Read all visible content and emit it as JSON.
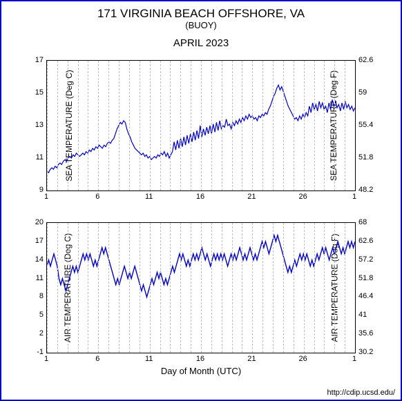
{
  "header": {
    "title": "171 VIRGINIA BEACH OFFSHORE, VA",
    "subtitle": "(BUOY)",
    "period": "APRIL 2023"
  },
  "xaxis": {
    "label": "Day of Month (UTC)",
    "ticks": [
      1,
      6,
      11,
      16,
      21,
      26,
      1
    ],
    "min": 1,
    "max": 31
  },
  "credit": "http://cdip.ucsd.edu/",
  "line_color": "#0000cc",
  "grid_color": "#bfbfbf",
  "background_color": "#ffffff",
  "chart1": {
    "type": "line",
    "ylabel_left": "SEA TEMPERATURE (Deg C)",
    "ylabel_right": "SEA TEMPERATURE (Deg F)",
    "ylim": [
      9,
      17
    ],
    "yticks_left": [
      9,
      11,
      13,
      15,
      17
    ],
    "yticks_right": [
      48.2,
      51.8,
      55.4,
      59,
      62.6
    ],
    "label_fontsize": 12,
    "tick_fontsize": 11,
    "line_width": 1.2,
    "series": [
      10.2,
      10.1,
      10.3,
      10.4,
      10.3,
      10.5,
      10.4,
      10.6,
      10.7,
      10.6,
      10.8,
      10.9,
      10.8,
      11.0,
      11.1,
      11.0,
      11.2,
      11.1,
      11.3,
      11.2,
      11.1,
      11.2,
      11.3,
      11.2,
      11.4,
      11.3,
      11.5,
      11.4,
      11.6,
      11.5,
      11.7,
      11.6,
      11.8,
      11.7,
      11.6,
      11.8,
      11.7,
      11.9,
      12.0,
      11.9,
      12.1,
      12.2,
      12.5,
      12.8,
      13.0,
      13.2,
      13.1,
      13.3,
      13.2,
      12.8,
      12.5,
      12.3,
      12.0,
      11.8,
      11.6,
      11.5,
      11.4,
      11.3,
      11.2,
      11.3,
      11.1,
      11.2,
      11.0,
      11.1,
      10.9,
      11.0,
      11.1,
      11.0,
      11.2,
      11.1,
      11.3,
      11.2,
      11.4,
      11.1,
      11.3,
      11.0,
      11.2,
      11.4,
      12.0,
      11.5,
      12.1,
      11.6,
      12.2,
      11.7,
      12.3,
      11.8,
      12.4,
      11.9,
      12.5,
      12.0,
      12.6,
      12.1,
      12.7,
      12.2,
      13.0,
      12.3,
      12.8,
      12.4,
      12.9,
      12.5,
      13.0,
      12.5,
      13.1,
      12.6,
      13.2,
      12.7,
      13.3,
      12.8,
      13.0,
      12.9,
      13.4,
      13.0,
      13.1,
      12.8,
      13.2,
      13.0,
      13.3,
      13.1,
      13.4,
      13.2,
      13.5,
      13.3,
      13.6,
      13.4,
      13.7,
      13.5,
      13.6,
      13.4,
      13.5,
      13.3,
      13.6,
      13.5,
      13.7,
      13.6,
      13.8,
      13.7,
      14.0,
      14.2,
      14.5,
      14.8,
      15.0,
      15.3,
      15.5,
      15.2,
      15.4,
      15.1,
      14.8,
      14.5,
      14.2,
      14.0,
      13.8,
      13.6,
      13.4,
      13.5,
      13.3,
      13.6,
      13.4,
      13.7,
      13.5,
      13.8,
      13.6,
      14.2,
      13.8,
      14.4,
      14.0,
      14.3,
      13.9,
      14.5,
      14.1,
      14.4,
      14.0,
      14.2,
      13.8,
      14.4,
      14.0,
      14.6,
      14.2,
      14.5,
      14.1,
      14.3,
      13.9,
      14.4,
      14.0,
      14.5,
      14.1,
      14.3,
      14.0,
      14.2,
      13.9,
      14.1
    ]
  },
  "chart2": {
    "type": "line",
    "ylabel_left": "AIR TEMPERATURE (Deg C)",
    "ylabel_right": "AIR TEMPERATURE (Deg F)",
    "ylim": [
      -1,
      20
    ],
    "yticks_left": [
      -1,
      2,
      5,
      8,
      11,
      14,
      17,
      20
    ],
    "yticks_right": [
      30.2,
      35.6,
      41,
      46.4,
      51.8,
      57.2,
      62.6,
      68
    ],
    "label_fontsize": 12,
    "tick_fontsize": 11,
    "line_width": 1.4,
    "series": [
      13,
      14,
      13,
      14,
      15,
      14,
      13,
      11,
      10,
      11,
      10,
      9,
      10,
      11,
      12,
      13,
      12,
      13,
      12,
      13,
      14,
      15,
      14,
      15,
      14,
      15,
      14,
      13,
      14,
      13,
      14,
      15,
      16,
      15,
      16,
      15,
      14,
      13,
      12,
      11,
      10,
      11,
      10,
      11,
      12,
      13,
      12,
      11,
      12,
      11,
      12,
      13,
      12,
      11,
      10,
      9,
      10,
      9,
      8,
      9,
      10,
      11,
      10,
      11,
      12,
      11,
      12,
      11,
      10,
      11,
      10,
      11,
      12,
      13,
      12,
      13,
      14,
      15,
      14,
      15,
      14,
      13,
      14,
      13,
      14,
      15,
      14,
      15,
      14,
      15,
      16,
      15,
      14,
      15,
      14,
      13,
      14,
      15,
      14,
      15,
      14,
      15,
      14,
      15,
      14,
      13,
      14,
      15,
      14,
      15,
      14,
      15,
      16,
      15,
      14,
      15,
      14,
      15,
      16,
      15,
      14,
      15,
      14,
      15,
      16,
      17,
      16,
      17,
      16,
      15,
      16,
      17,
      18,
      17,
      18,
      17,
      16,
      15,
      14,
      13,
      12,
      13,
      12,
      13,
      14,
      13,
      14,
      15,
      14,
      15,
      14,
      15,
      14,
      13,
      14,
      13,
      14,
      15,
      14,
      15,
      16,
      15,
      16,
      15,
      14,
      15,
      16,
      15,
      16,
      17,
      16,
      15,
      16,
      15,
      16,
      17,
      16,
      17,
      16,
      17
    ]
  }
}
